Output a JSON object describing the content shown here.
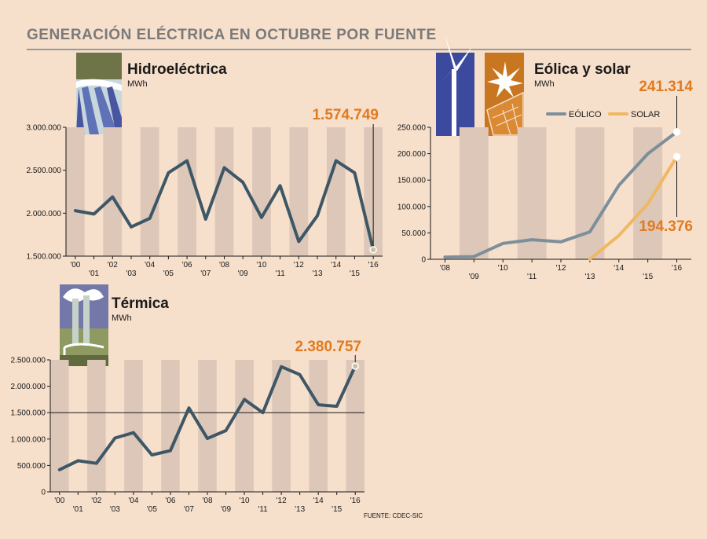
{
  "header": {
    "title": "GENERACIÓN ELÉCTRICA EN OCTUBRE POR FUENTE"
  },
  "source": "FUENTE: CDEC-SIC",
  "colors": {
    "background": "#f6dfcb",
    "stripe": "#dcc7b9",
    "dark_line": "#3e5766",
    "eolico": "#7d8f9b",
    "solar": "#f0b861",
    "highlight": "#e07b20"
  },
  "chart_data": [
    {
      "id": "hydro",
      "type": "line",
      "title": "Hidroeléctrica",
      "unit": "MWh",
      "icon": "dam-icon",
      "categories": [
        "'00",
        "'01",
        "'02",
        "'03",
        "'04",
        "'05",
        "'06",
        "'07",
        "'08",
        "'09",
        "'10",
        "'11",
        "'12",
        "'13",
        "'14",
        "'15",
        "'16"
      ],
      "series": [
        {
          "name": "Hidroeléctrica",
          "values": [
            2030000,
            1990000,
            2190000,
            1840000,
            1940000,
            2470000,
            2610000,
            1930000,
            2530000,
            2360000,
            1950000,
            2320000,
            1670000,
            1970000,
            2610000,
            2470000,
            1574749
          ]
        }
      ],
      "ylim": [
        1500000,
        3000000
      ],
      "yticks": [
        1500000,
        2000000,
        2500000,
        3000000
      ],
      "ytick_labels": [
        "1.500.000",
        "2.000.000",
        "2.500.000",
        "3.000.000"
      ],
      "highlight_label": "1.574.749"
    },
    {
      "id": "wind-solar",
      "type": "line",
      "title": "Eólica y solar",
      "unit": "MWh",
      "icon": "wind-solar-icon",
      "categories": [
        "'08",
        "'09",
        "'10",
        "'11",
        "'12",
        "'13",
        "'14",
        "'15",
        "'16"
      ],
      "series": [
        {
          "name": "EÓLICO",
          "values": [
            4000,
            5000,
            30000,
            37000,
            33000,
            52000,
            140000,
            200000,
            241314
          ]
        },
        {
          "name": "SOLAR",
          "values": [
            null,
            null,
            null,
            null,
            null,
            0,
            45000,
            105000,
            194376
          ]
        }
      ],
      "legend": [
        "EÓLICO",
        "SOLAR"
      ],
      "ylim": [
        0,
        250000
      ],
      "yticks": [
        0,
        50000,
        100000,
        150000,
        200000,
        250000
      ],
      "ytick_labels": [
        "0",
        "50.000",
        "100.000",
        "150.000",
        "200.000",
        "250.000"
      ],
      "highlight_labels": [
        "241.314",
        "194.376"
      ]
    },
    {
      "id": "thermal",
      "type": "line",
      "title": "Térmica",
      "unit": "MWh",
      "icon": "thermal-plant-icon",
      "categories": [
        "'00",
        "'01",
        "'02",
        "'03",
        "'04",
        "'05",
        "'06",
        "'07",
        "'08",
        "'09",
        "'10",
        "'11",
        "'12",
        "'13",
        "'14",
        "'15",
        "'16"
      ],
      "series": [
        {
          "name": "Térmica",
          "values": [
            420000,
            590000,
            540000,
            1020000,
            1120000,
            700000,
            780000,
            1590000,
            1010000,
            1160000,
            1750000,
            1500000,
            2370000,
            2220000,
            1650000,
            1620000,
            2380757
          ]
        }
      ],
      "ylim": [
        0,
        2500000
      ],
      "yticks": [
        0,
        500000,
        1000000,
        1500000,
        2000000,
        2500000
      ],
      "ytick_labels": [
        "0",
        "500.000",
        "1.000.000",
        "1.500.000",
        "2.000.000",
        "2.500.000"
      ],
      "reference_line": 1500000,
      "highlight_label": "2.380.757"
    }
  ]
}
